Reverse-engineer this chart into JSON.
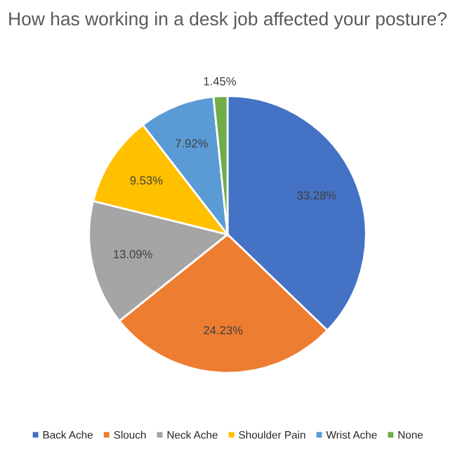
{
  "chart_data": {
    "type": "pie",
    "title": "How has working in a desk job affected your posture?",
    "categories": [
      "Back Ache",
      "Slouch",
      "Neck Ache",
      "Shoulder Pain",
      "Wrist Ache",
      "None"
    ],
    "values": [
      33.28,
      24.23,
      13.09,
      9.53,
      7.92,
      1.45
    ],
    "value_labels": [
      "33.28%",
      "24.23%",
      "13.09%",
      "9.53%",
      "7.92%",
      "1.45%"
    ],
    "colors": [
      "#4472c4",
      "#ed7d31",
      "#a5a5a5",
      "#ffc000",
      "#5b9bd5",
      "#70ad47"
    ],
    "legend": "bottom"
  }
}
